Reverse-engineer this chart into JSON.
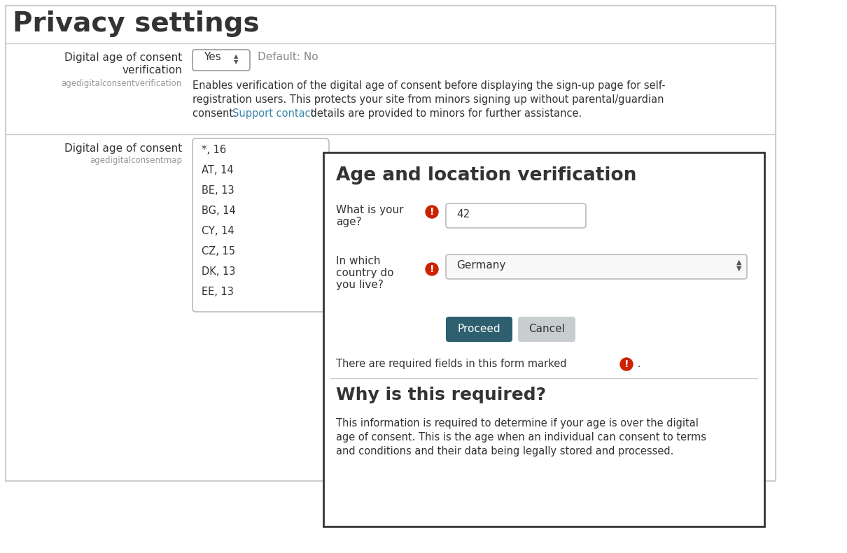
{
  "bg_color": "#ffffff",
  "title": "Privacy settings",
  "field1_label1": "Digital age of consent",
  "field1_label2": "verification",
  "field1_sublabel": "agedigitalconsentverification",
  "field1_dropdown_text": "Yes",
  "field1_default": "Default: No",
  "field1_desc_line1": "Enables verification of the digital age of consent before displaying the sign-up page for self-",
  "field1_desc_line2": "registration users. This protects your site from minors signing up without parental/guardian",
  "field1_desc_line3_pre": "consent. ",
  "field1_link": "Support contact",
  "field1_desc_line3_post": " details are provided to minors for further assistance.",
  "field2_label1": "Digital age of consent",
  "field2_sublabel": "agedigitalconsentmap",
  "field2_list": [
    "*, 16",
    "AT, 14",
    "BE, 13",
    "BG, 14",
    "CY, 14",
    "CZ, 15",
    "DK, 13",
    "EE, 13"
  ],
  "modal_title": "Age and location verification",
  "modal_q1_label1": "What is your",
  "modal_q1_label2": "age?",
  "modal_q1_value": "42",
  "modal_q2_label1": "In which",
  "modal_q2_label2": "country do",
  "modal_q2_label3": "you live?",
  "modal_q2_value": "Germany",
  "modal_btn1": "Proceed",
  "modal_btn2": "Cancel",
  "modal_required_text": "There are required fields in this form marked",
  "modal_required_dot": " .",
  "modal_section2_title": "Why is this required?",
  "modal_section2_line1": "This information is required to determine if your age is over the digital",
  "modal_section2_line2": "age of consent. This is the age when an individual can consent to terms",
  "modal_section2_line3": "and conditions and their data being legally stored and processed.",
  "link_color": "#3a87ad",
  "btn1_color": "#2d5f6e",
  "btn2_color": "#c8cdd0",
  "btn1_text_color": "#ffffff",
  "btn2_text_color": "#333333",
  "border_color": "#aaaaaa",
  "modal_border_color": "#333333",
  "text_color": "#333333",
  "sublabel_color": "#999999",
  "error_color": "#cc2200",
  "divider_color": "#cccccc",
  "bg_panel_color": "#ffffff",
  "panel_border_color": "#cccccc"
}
